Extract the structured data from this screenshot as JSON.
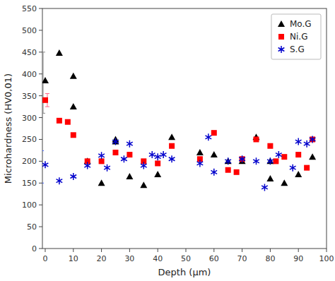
{
  "chart_data": {
    "type": "scatter",
    "xlabel": "Depth (μm)",
    "ylabel": "Microhardness (HV0,01)",
    "xlim": [
      -1,
      100
    ],
    "ylim": [
      0,
      550
    ],
    "xticks": [
      0,
      10,
      20,
      30,
      40,
      50,
      60,
      70,
      80,
      90,
      100
    ],
    "yticks": [
      0,
      50,
      100,
      150,
      200,
      250,
      300,
      350,
      400,
      450,
      500,
      550
    ],
    "grid": false,
    "legend": "upper right",
    "series": [
      {
        "name": "Mo.G",
        "color": "#000000",
        "marker": "triangle",
        "x": [
          0,
          5,
          10,
          10,
          15,
          20,
          25,
          25,
          30,
          35,
          40,
          45,
          55,
          60,
          65,
          70,
          75,
          80,
          80,
          85,
          90,
          95
        ],
        "values": [
          385,
          448,
          395,
          325,
          200,
          150,
          250,
          245,
          165,
          145,
          170,
          255,
          220,
          215,
          200,
          200,
          255,
          160,
          200,
          150,
          170,
          210
        ],
        "error_bar": {
          "x": 0,
          "y": 385,
          "low": 75,
          "high": 65,
          "color": "#888888"
        }
      },
      {
        "name": "Ni.G",
        "color": "#ff0000",
        "marker": "square",
        "x": [
          0,
          5,
          8,
          10,
          15,
          20,
          25,
          30,
          35,
          40,
          45,
          55,
          60,
          65,
          68,
          70,
          75,
          80,
          82,
          85,
          90,
          93,
          95
        ],
        "values": [
          340,
          293,
          290,
          260,
          200,
          200,
          220,
          215,
          200,
          195,
          235,
          205,
          265,
          180,
          175,
          205,
          250,
          235,
          200,
          210,
          215,
          185,
          250
        ],
        "error_bar": {
          "x": 0,
          "y": 340,
          "low": 15,
          "high": 15,
          "color": "#ff6688"
        }
      },
      {
        "name": "S.G",
        "color": "#0000cc",
        "marker": "asterisk",
        "x": [
          0,
          5,
          10,
          15,
          20,
          22,
          25,
          28,
          30,
          35,
          38,
          40,
          42,
          45,
          55,
          58,
          60,
          65,
          70,
          75,
          78,
          80,
          83,
          88,
          90,
          93,
          95
        ],
        "values": [
          192,
          155,
          165,
          190,
          213,
          185,
          245,
          205,
          240,
          190,
          215,
          210,
          215,
          205,
          195,
          255,
          175,
          200,
          205,
          200,
          140,
          200,
          215,
          185,
          245,
          240,
          250
        ],
        "error_bar": {
          "x": 0,
          "y": 192,
          "low": 42,
          "high": 32,
          "color": "#4466ff"
        }
      }
    ]
  }
}
